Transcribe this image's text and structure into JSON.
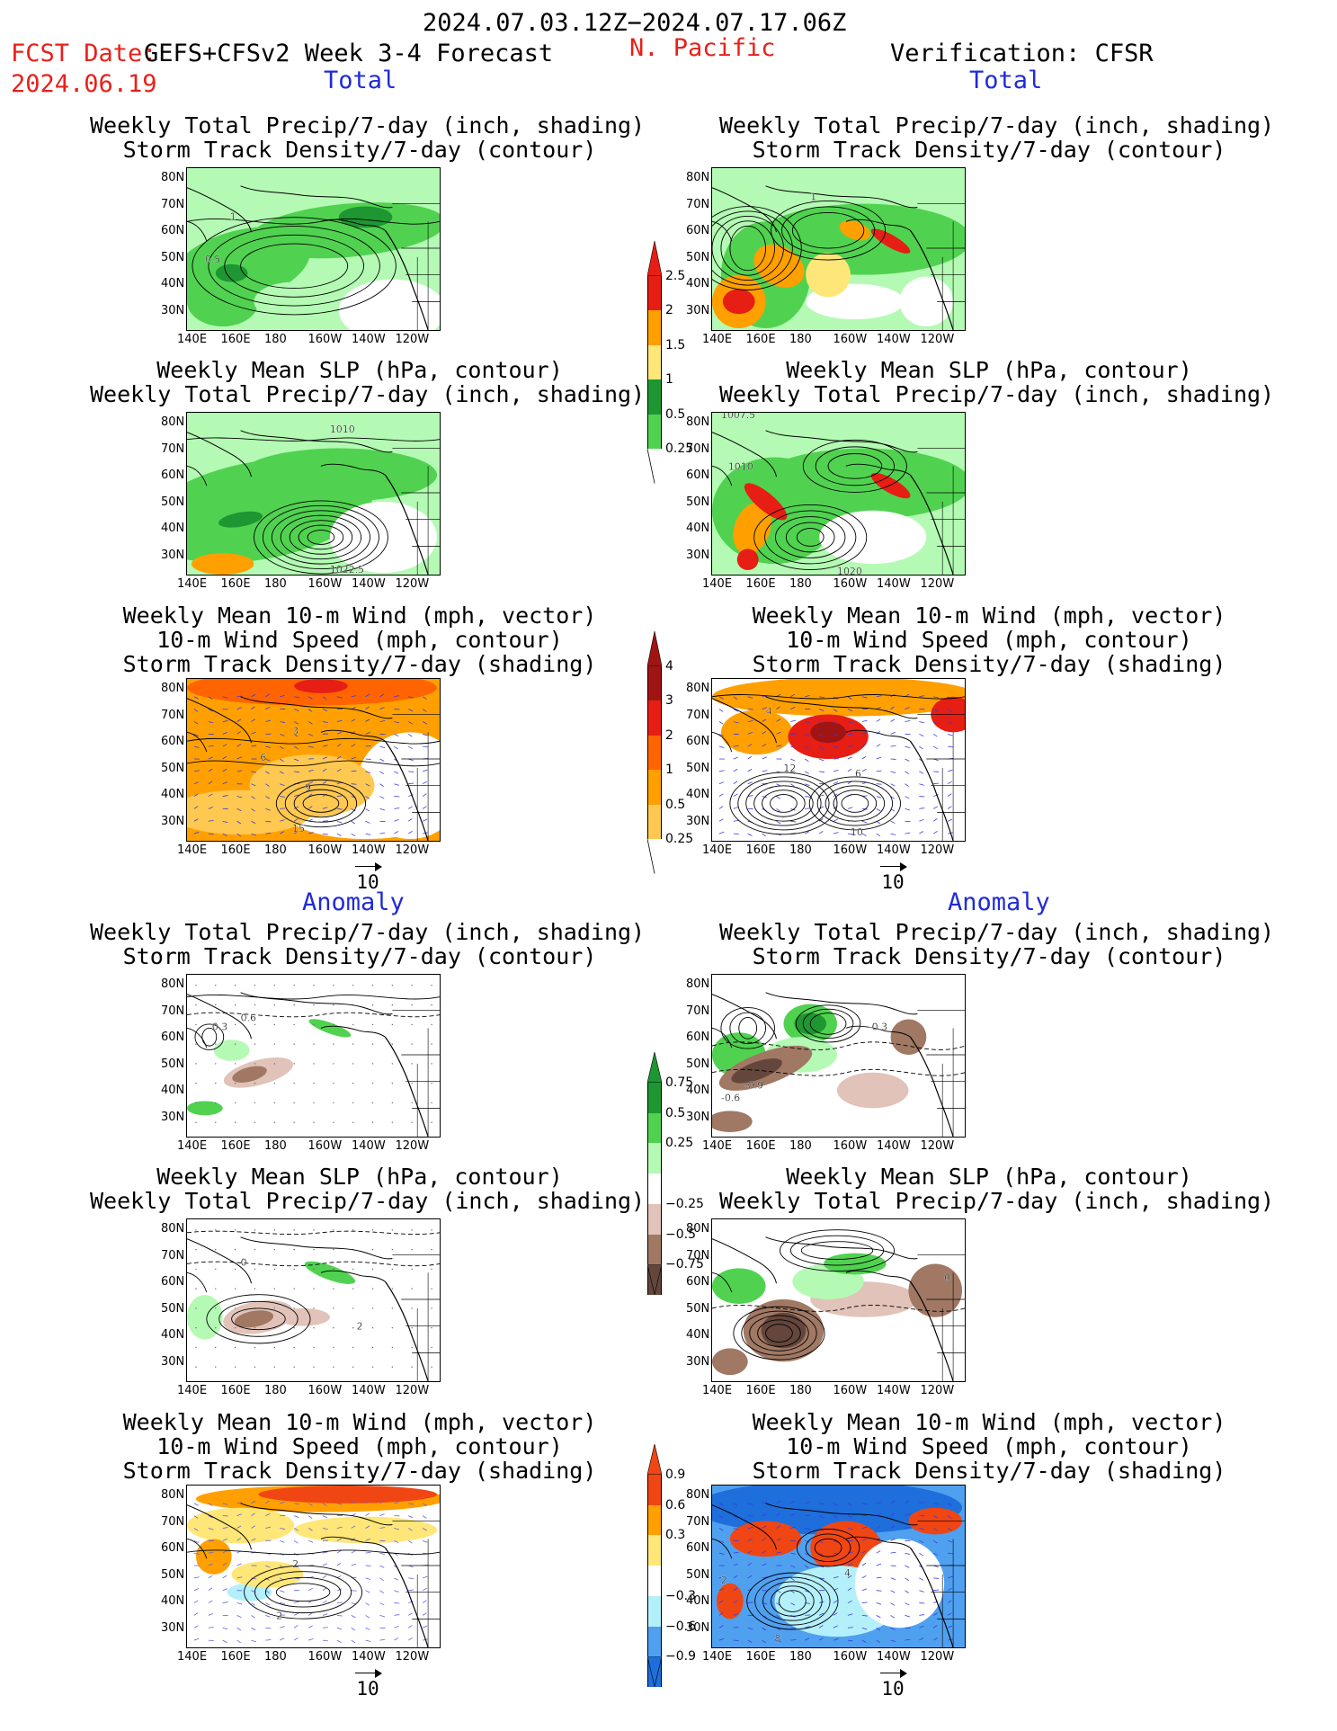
{
  "header": {
    "period": "2024.07.03.12Z−2024.07.17.06Z",
    "fcst_label": "FCST Date:",
    "model": "GEFS+CFSv2 Week 3-4 Forecast",
    "region": "N. Pacific",
    "fcst_date": "2024.06.19",
    "verification": "Verification: CFSR"
  },
  "sections": {
    "total": "Total",
    "anomaly": "Anomaly"
  },
  "axes": {
    "lat_ticks": [
      "80N",
      "70N",
      "60N",
      "50N",
      "40N",
      "30N"
    ],
    "lon_ticks": [
      "140E",
      "160E",
      "180",
      "160W",
      "140W",
      "120W"
    ]
  },
  "titles": {
    "precip_storm": [
      "Weekly Total Precip/7-day (inch, shading)",
      "Storm Track Density/7-day (contour)"
    ],
    "slp_precip": [
      "Weekly Mean SLP (hPa, contour)",
      "Weekly Total Precip/7-day (inch, shading)"
    ],
    "wind_storm": [
      "Weekly Mean 10-m Wind (mph, vector)",
      "10-m Wind Speed (mph, contour)",
      "Storm Track Density/7-day (shading)"
    ]
  },
  "vector_ref": "10",
  "colorbars": [
    {
      "labels": [
        "2.5",
        "2",
        "1.5",
        "1",
        "0.5",
        "0.25"
      ],
      "colors": [
        "#e61e14",
        "#ffa000",
        "#ffe678",
        "#1e9632",
        "#50d250",
        "#b4fab4"
      ]
    },
    {
      "labels": [
        "4",
        "3",
        "2",
        "1",
        "0.5",
        "0.25"
      ],
      "colors": [
        "#a01414",
        "#e61e14",
        "#ff6400",
        "#ffa000",
        "#ffc850",
        "#fff5a0"
      ]
    },
    {
      "labels": [
        "0.75",
        "0.5",
        "0.25",
        "−0.25",
        "−0.5",
        "−0.75"
      ],
      "colors": [
        "#1e9632",
        "#50d250",
        "#b4fab4",
        "#ffffff",
        "#e1c3b9",
        "#a07864",
        "#64463c"
      ]
    },
    {
      "labels": [
        "0.9",
        "0.6",
        "0.3",
        "−0.3",
        "−0.6",
        "−0.9"
      ],
      "colors": [
        "#f04614",
        "#ffa000",
        "#ffe678",
        "#ffffff",
        "#b4f0fa",
        "#50a0f0",
        "#1e6edc"
      ]
    }
  ],
  "contour_labels": {
    "fp": [
      "1",
      "0.5"
    ],
    "vp": [
      "1"
    ],
    "fs": [
      "1010",
      "1022.5"
    ],
    "vs": [
      "1007.5",
      "1010",
      "1020"
    ],
    "fw": [
      "3",
      "6",
      "9",
      "15"
    ],
    "vw": [
      "4",
      "12",
      "6",
      "10"
    ],
    "fpa": [
      "0.6",
      "0.3"
    ],
    "vpa": [
      "-0.3",
      "-0.9",
      "-0.6"
    ],
    "fsa": [
      "0",
      "2"
    ],
    "vsa": [
      "0"
    ],
    "fwa": [
      "2",
      "2"
    ],
    "vwa": [
      "2",
      "4",
      "8"
    ]
  }
}
